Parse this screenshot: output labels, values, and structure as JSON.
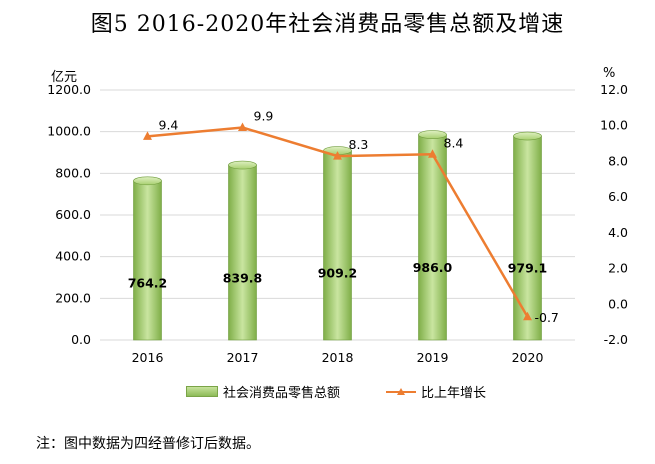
{
  "title": "图5 2016-2020年社会消费品零售总额及增速",
  "note": "注：图中数据为四经普修订后数据。",
  "chart_data": {
    "type": "bar+line",
    "categories": [
      "2016",
      "2017",
      "2018",
      "2019",
      "2020"
    ],
    "series": [
      {
        "name": "社会消费品零售总额",
        "type": "bar",
        "axis": "left",
        "values": [
          764.2,
          839.8,
          909.2,
          986.0,
          979.1
        ],
        "color": "#9bc565"
      },
      {
        "name": "比上年增长",
        "type": "line",
        "axis": "right",
        "values": [
          9.4,
          9.9,
          8.3,
          8.4,
          -0.7
        ],
        "color": "#ed7d31"
      }
    ],
    "left_axis": {
      "unit": "亿元",
      "ylim": [
        0,
        1200
      ],
      "ticks": [
        "0.0",
        "200.0",
        "400.0",
        "600.0",
        "800.0",
        "1000.0",
        "1200.0"
      ]
    },
    "right_axis": {
      "unit": "%",
      "ylim": [
        -2,
        12
      ],
      "ticks": [
        "-2.0",
        "0.0",
        "2.0",
        "4.0",
        "6.0",
        "8.0",
        "10.0",
        "12.0"
      ]
    },
    "grid": true,
    "legend": "bottom"
  }
}
